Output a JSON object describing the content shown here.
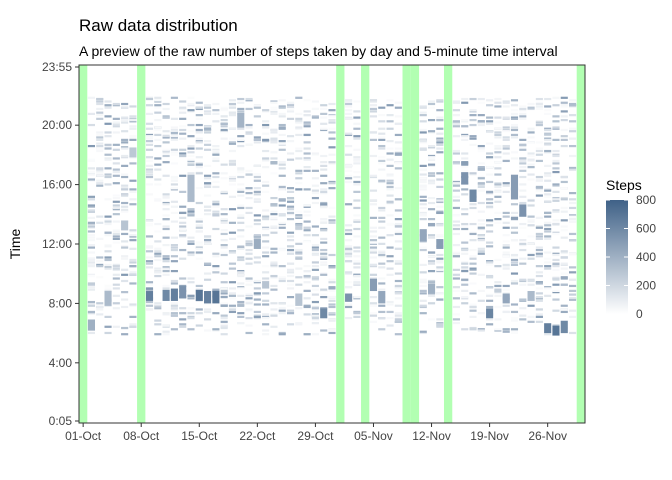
{
  "chart_data": {
    "type": "heatmap",
    "title": "Raw data distribution",
    "subtitle": "A preview of the raw number of steps taken by day and 5-minute time interval",
    "xlabel": "",
    "ylabel": "Time",
    "x_start": "2012-10-01",
    "x_end": "2012-11-30",
    "xticks": [
      "01-Oct",
      "08-Oct",
      "15-Oct",
      "22-Oct",
      "29-Oct",
      "05-Nov",
      "12-Nov",
      "19-Nov",
      "26-Nov"
    ],
    "yticks": [
      "0:05",
      "4:00",
      "8:00",
      "12:00",
      "16:00",
      "20:00",
      "23:55"
    ],
    "ylim": [
      "0:05",
      "23:55"
    ],
    "missing_days": [
      "2012-10-01",
      "2012-10-08",
      "2012-11-01",
      "2012-11-04",
      "2012-11-09",
      "2012-11-10",
      "2012-11-14",
      "2012-11-30"
    ],
    "missing_color": "#b2ffb2",
    "legend": {
      "title": "Steps",
      "ticks": [
        "0",
        "200",
        "400",
        "600",
        "800"
      ],
      "range": [
        0,
        800
      ],
      "low_color": "#ffffff",
      "high_color": "#3f6187",
      "position": "right"
    },
    "highlights": [
      {
        "day": "2012-10-02",
        "start": "6:10",
        "end": "6:55",
        "steps": 400
      },
      {
        "day": "2012-10-04",
        "start": "7:50",
        "end": "8:50",
        "steps": 350
      },
      {
        "day": "2012-10-06",
        "start": "12:55",
        "end": "13:35",
        "steps": 300
      },
      {
        "day": "2012-10-07",
        "start": "17:50",
        "end": "18:30",
        "steps": 280
      },
      {
        "day": "2012-10-09",
        "start": "8:10",
        "end": "8:50",
        "steps": 650
      },
      {
        "day": "2012-10-11",
        "start": "8:10",
        "end": "8:55",
        "steps": 600
      },
      {
        "day": "2012-10-12",
        "start": "8:10",
        "end": "9:00",
        "steps": 650
      },
      {
        "day": "2012-10-13",
        "start": "8:20",
        "end": "9:10",
        "steps": 550
      },
      {
        "day": "2012-10-15",
        "start": "8:10",
        "end": "8:55",
        "steps": 700
      },
      {
        "day": "2012-10-16",
        "start": "8:00",
        "end": "8:50",
        "steps": 650
      },
      {
        "day": "2012-10-17",
        "start": "8:00",
        "end": "8:50",
        "steps": 700
      },
      {
        "day": "2012-10-14",
        "start": "14:50",
        "end": "16:40",
        "steps": 350
      },
      {
        "day": "2012-10-20",
        "start": "19:50",
        "end": "20:50",
        "steps": 380
      },
      {
        "day": "2012-10-22",
        "start": "11:40",
        "end": "12:20",
        "steps": 420
      },
      {
        "day": "2012-10-23",
        "start": "9:00",
        "end": "9:30",
        "steps": 300
      },
      {
        "day": "2012-10-27",
        "start": "7:50",
        "end": "8:40",
        "steps": 300
      },
      {
        "day": "2012-10-30",
        "start": "7:00",
        "end": "7:40",
        "steps": 600
      },
      {
        "day": "2012-11-02",
        "start": "8:10",
        "end": "8:40",
        "steps": 550
      },
      {
        "day": "2012-11-05",
        "start": "8:50",
        "end": "9:40",
        "steps": 500
      },
      {
        "day": "2012-11-06",
        "start": "8:00",
        "end": "8:50",
        "steps": 450
      },
      {
        "day": "2012-11-11",
        "start": "12:10",
        "end": "13:00",
        "steps": 450
      },
      {
        "day": "2012-11-12",
        "start": "8:40",
        "end": "9:20",
        "steps": 400
      },
      {
        "day": "2012-11-13",
        "start": "11:40",
        "end": "12:20",
        "steps": 500
      },
      {
        "day": "2012-11-16",
        "start": "16:00",
        "end": "16:50",
        "steps": 550
      },
      {
        "day": "2012-11-17",
        "start": "14:50",
        "end": "15:40",
        "steps": 600
      },
      {
        "day": "2012-11-19",
        "start": "7:00",
        "end": "7:40",
        "steps": 620
      },
      {
        "day": "2012-11-21",
        "start": "8:00",
        "end": "8:40",
        "steps": 450
      },
      {
        "day": "2012-11-22",
        "start": "15:00",
        "end": "16:40",
        "steps": 500
      },
      {
        "day": "2012-11-23",
        "start": "13:50",
        "end": "14:40",
        "steps": 550
      },
      {
        "day": "2012-11-24",
        "start": "8:10",
        "end": "8:50",
        "steps": 350
      },
      {
        "day": "2012-11-26",
        "start": "6:00",
        "end": "6:40",
        "steps": 650
      },
      {
        "day": "2012-11-27",
        "start": "5:50",
        "end": "6:30",
        "steps": 700
      },
      {
        "day": "2012-11-28",
        "start": "6:00",
        "end": "6:50",
        "steps": 600
      }
    ]
  }
}
